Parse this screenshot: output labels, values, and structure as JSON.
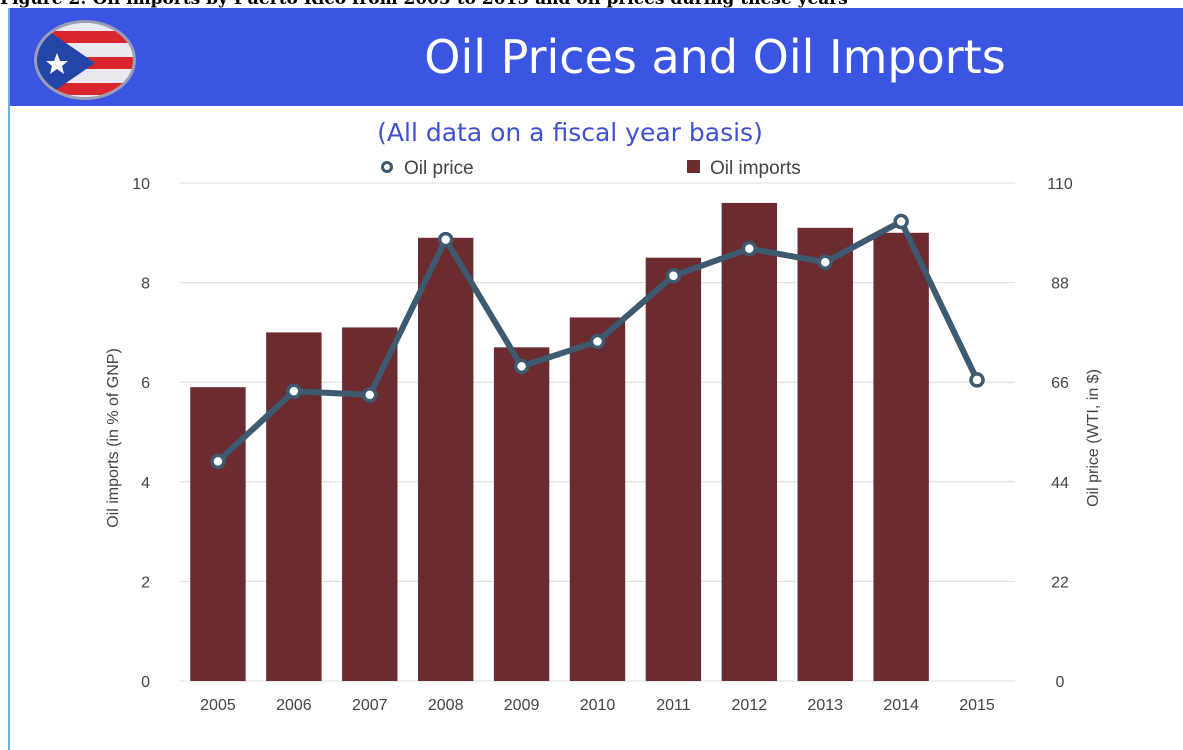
{
  "caption": "Figure 2: Oil imports by Puerto Rico from 2005 to 2015 and oil prices during these years",
  "banner_title": "Oil Prices and Oil Imports",
  "logo": "puerto-rico-flag-icon",
  "colors": {
    "banner": "#3b55e3",
    "subtitle": "#3f4fd6",
    "bars": "#6b2b2f",
    "line": "#3d5a70",
    "left_axis_label": "#6b2b2f"
  },
  "chart_data": {
    "type": "bar",
    "subtitle": "(All data on a fiscal year basis)",
    "categories": [
      "2005",
      "2006",
      "2007",
      "2008",
      "2009",
      "2010",
      "2011",
      "2012",
      "2013",
      "2014",
      "2015"
    ],
    "series": [
      {
        "name": "Oil imports",
        "type": "bar",
        "axis": "left",
        "values": [
          5.9,
          7.0,
          7.1,
          8.9,
          6.7,
          7.3,
          8.5,
          9.6,
          9.1,
          9.0,
          null
        ]
      },
      {
        "name": "Oil price",
        "type": "line",
        "axis": "right",
        "values": [
          48.5,
          64.0,
          63.2,
          97.5,
          69.5,
          75.0,
          89.5,
          95.5,
          92.5,
          101.5,
          66.5
        ]
      }
    ],
    "ylabel_left": "Oil imports (in % of GNP)",
    "ylabel_right": "Oil price (WTI, in $)",
    "ylim_left": [
      0,
      10
    ],
    "yticks_left": [
      0,
      2,
      4,
      6,
      8,
      10
    ],
    "ylim_right": [
      0,
      110
    ],
    "yticks_right": [
      0,
      22,
      44,
      66,
      88,
      110
    ],
    "grid": true,
    "legend_position": "top-center"
  }
}
